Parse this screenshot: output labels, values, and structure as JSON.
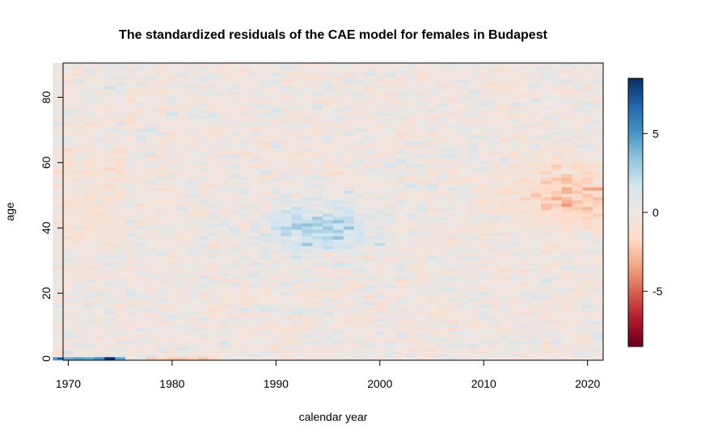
{
  "chart_data": {
    "type": "heatmap",
    "title": "The standardized residuals of the CAE model for females in Budapest",
    "xlabel": "calendar year",
    "ylabel": "age",
    "x_range": [
      1969,
      2021
    ],
    "y_range": [
      0,
      90
    ],
    "xlim": [
      1969.5,
      2021.5
    ],
    "ylim": [
      -0.5,
      90.5
    ],
    "x_ticks": [
      1970,
      1980,
      1990,
      2000,
      2010,
      2020
    ],
    "y_ticks": [
      0,
      20,
      40,
      60,
      80
    ],
    "colorbar": {
      "range": [
        -8.5,
        8.5
      ],
      "ticks": [
        5,
        0,
        -5
      ],
      "palette": [
        "#67001f",
        "#b2182b",
        "#d6604d",
        "#f4a582",
        "#fddbc7",
        "#f0e6e0",
        "#d1e5f0",
        "#92c5de",
        "#4393c3",
        "#2166ac",
        "#053061"
      ]
    },
    "features": {
      "age0_early_positive": {
        "years": [
          1969,
          1975
        ],
        "value": 7.5
      },
      "age0_late_negative": {
        "years": [
          1978,
          1984
        ],
        "value": -1.8
      },
      "midage_positive_cluster": {
        "center_year": 1994,
        "center_age": 40,
        "value": 2.8
      },
      "recent_negative_cluster": {
        "center_year": 2018,
        "center_age": 50,
        "value": -2.6
      },
      "noise_sd": 0.55
    }
  }
}
